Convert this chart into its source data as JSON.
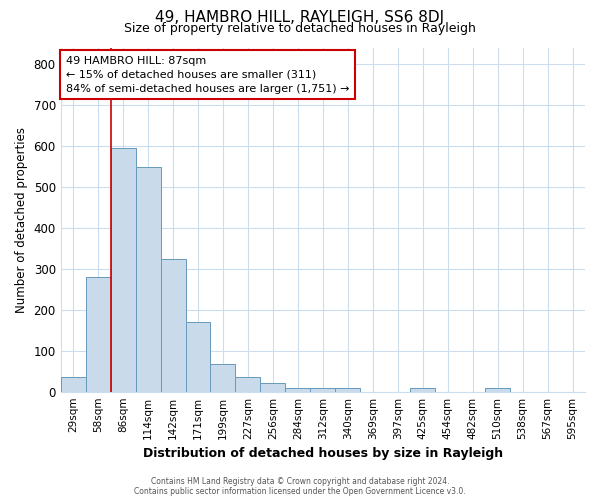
{
  "title": "49, HAMBRO HILL, RAYLEIGH, SS6 8DJ",
  "subtitle": "Size of property relative to detached houses in Rayleigh",
  "xlabel": "Distribution of detached houses by size in Rayleigh",
  "ylabel": "Number of detached properties",
  "bins": [
    "29sqm",
    "58sqm",
    "86sqm",
    "114sqm",
    "142sqm",
    "171sqm",
    "199sqm",
    "227sqm",
    "256sqm",
    "284sqm",
    "312sqm",
    "340sqm",
    "369sqm",
    "397sqm",
    "425sqm",
    "454sqm",
    "482sqm",
    "510sqm",
    "538sqm",
    "567sqm",
    "595sqm"
  ],
  "values": [
    37,
    280,
    595,
    548,
    325,
    170,
    68,
    37,
    20,
    10,
    10,
    10,
    0,
    0,
    8,
    0,
    0,
    8,
    0,
    0,
    0
  ],
  "bar_color": "#c9daea",
  "bar_edge_color": "#6699bb",
  "property_line_color": "#cc0000",
  "property_line_bin": 2,
  "annotation_text": "49 HAMBRO HILL: 87sqm\n← 15% of detached houses are smaller (311)\n84% of semi-detached houses are larger (1,751) →",
  "annotation_box_facecolor": "#ffffff",
  "annotation_box_edgecolor": "#cc0000",
  "footer_line1": "Contains HM Land Registry data © Crown copyright and database right 2024.",
  "footer_line2": "Contains public sector information licensed under the Open Government Licence v3.0.",
  "ylim": [
    0,
    840
  ],
  "yticks": [
    0,
    100,
    200,
    300,
    400,
    500,
    600,
    700,
    800
  ],
  "bg_color": "#ffffff",
  "grid_color": "#ccddee",
  "title_fontsize": 11,
  "subtitle_fontsize": 9
}
